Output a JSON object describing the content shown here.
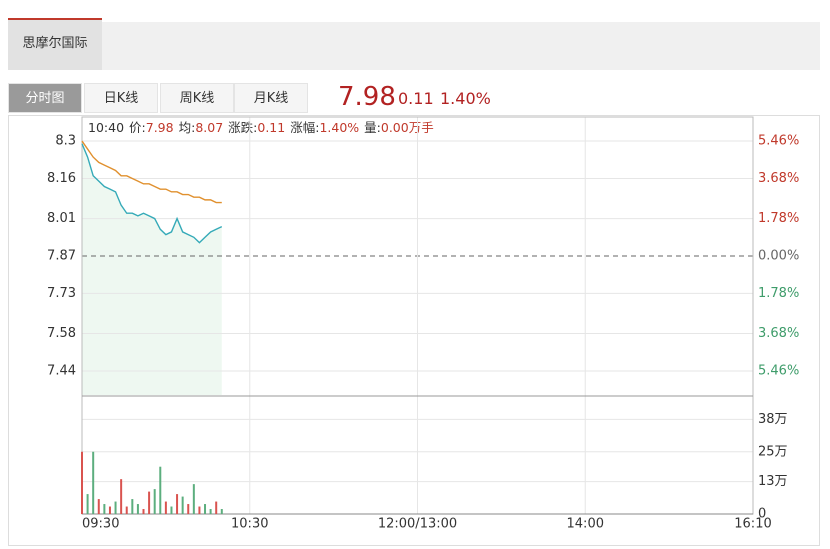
{
  "stock_name": "思摩尔国际",
  "tabs": [
    "分时图",
    "日K线",
    "周K线",
    "月K线"
  ],
  "quote": {
    "price": "7.98",
    "change": "0.11",
    "pct": "1.40%"
  },
  "info": [
    {
      "label": "10:40"
    },
    {
      "label": "价:",
      "value": "7.98"
    },
    {
      "label": "均:",
      "value": "8.07"
    },
    {
      "label": "涨跌:",
      "value": "0.11"
    },
    {
      "label": "涨幅:",
      "value": "1.40%"
    },
    {
      "label": "量:",
      "value": "0.00万手"
    }
  ],
  "chart_data": {
    "type": "line",
    "x": [
      0,
      2,
      4,
      6,
      8,
      10,
      12,
      14,
      16,
      18,
      20,
      22,
      24,
      26,
      28,
      30,
      32,
      34,
      36,
      38,
      40,
      42,
      44,
      46,
      48,
      50
    ],
    "xticks": [
      {
        "value": 0,
        "label": "09:30"
      },
      {
        "value": 60,
        "label": "10:30"
      },
      {
        "value": 150,
        "label": "12:00/13:00"
      },
      {
        "value": 210,
        "label": "14:00"
      },
      {
        "value": 340,
        "label": "16:10"
      }
    ],
    "series": [
      {
        "color": "#35aab8",
        "values": [
          8.29,
          8.24,
          8.17,
          8.15,
          8.13,
          8.12,
          8.11,
          8.06,
          8.03,
          8.03,
          8.02,
          8.03,
          8.02,
          8.01,
          7.97,
          7.95,
          7.96,
          8.01,
          7.96,
          7.95,
          7.94,
          7.92,
          7.94,
          7.96,
          7.97,
          7.98
        ]
      },
      {
        "color": "#e0902e",
        "values": [
          8.3,
          8.27,
          8.24,
          8.22,
          8.21,
          8.2,
          8.19,
          8.17,
          8.17,
          8.16,
          8.15,
          8.14,
          8.14,
          8.13,
          8.12,
          8.12,
          8.11,
          8.11,
          8.1,
          8.1,
          8.09,
          8.09,
          8.08,
          8.08,
          8.07,
          8.07
        ]
      }
    ],
    "area_color": "#eef8f1",
    "ylim": [
      7.35,
      8.39
    ],
    "yticks": [
      8.3,
      8.16,
      8.01,
      7.87,
      7.73,
      7.58,
      7.44
    ],
    "prev_close": 7.87,
    "y2lim": [
      -6.6,
      6.6
    ],
    "y2ticks": [
      {
        "value": 5.46,
        "label": "5.46%"
      },
      {
        "value": 3.68,
        "label": "3.68%"
      },
      {
        "value": 1.78,
        "label": "1.78%"
      },
      {
        "value": 0,
        "label": "0.00%"
      },
      {
        "value": -1.78,
        "label": "1.78%"
      },
      {
        "value": -3.68,
        "label": "3.68%"
      },
      {
        "value": -5.46,
        "label": "5.46%"
      }
    ],
    "grid": true,
    "volume": {
      "ylim": [
        0,
        47
      ],
      "yticks": [
        {
          "value": 0,
          "label": "0"
        },
        {
          "value": 13,
          "label": "13万"
        },
        {
          "value": 25,
          "label": "25万"
        },
        {
          "value": 38,
          "label": "38万"
        }
      ],
      "values": [
        25,
        8,
        25,
        6,
        4,
        3,
        5,
        14,
        3,
        6,
        4,
        2,
        9,
        10,
        19,
        5,
        3,
        8,
        7,
        4,
        12,
        3,
        4,
        2,
        5,
        2
      ],
      "colors": [
        "#d9534f",
        "#5cae7e",
        "#5cae7e",
        "#d9534f",
        "#5cae7e",
        "#d9534f",
        "#5cae7e",
        "#d9534f",
        "#d9534f",
        "#5cae7e",
        "#5cae7e",
        "#d9534f",
        "#d9534f",
        "#5cae7e",
        "#5cae7e",
        "#d9534f",
        "#5cae7e",
        "#d9534f",
        "#5cae7e",
        "#d9534f",
        "#5cae7e",
        "#d9534f",
        "#5cae7e",
        "#5cae7e",
        "#d9534f",
        "#5cae7e"
      ]
    }
  }
}
